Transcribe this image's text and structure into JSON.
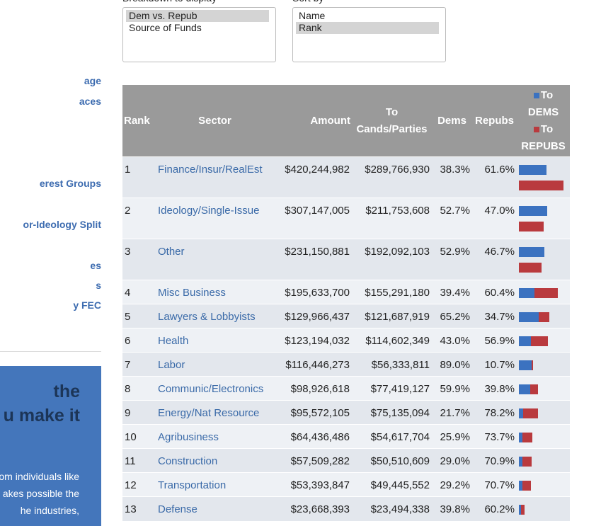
{
  "sidebar": {
    "links": [
      "age",
      "aces",
      "erest Groups",
      "or-Ideology Split",
      "es",
      "s",
      "y FEC"
    ],
    "promo": {
      "heading": [
        "the",
        "u make it"
      ],
      "text": [
        "om individuals like",
        "akes possible the",
        "he industries,"
      ]
    }
  },
  "controls": {
    "breakdown": {
      "label": "Breakdown to display",
      "options": [
        "Dem vs. Repub",
        "Source of Funds"
      ],
      "selected": 0
    },
    "sort": {
      "label": "Sort by",
      "options": [
        "Name",
        "Rank"
      ],
      "selected": 1
    }
  },
  "table": {
    "headers": [
      "Rank",
      "Sector",
      "Amount",
      "To Cands/Parties",
      "Dems",
      "Repubs"
    ],
    "legend": [
      "To DEMS",
      "To REPUBS"
    ],
    "rows": [
      [
        "1",
        "Finance/Insur/RealEst",
        "$420,244,982",
        "$289,766,930",
        "38.3%",
        "61.6%"
      ],
      [
        "2",
        "Ideology/Single-Issue",
        "$307,147,005",
        "$211,753,608",
        "52.7%",
        "47.0%"
      ],
      [
        "3",
        "Other",
        "$231,150,881",
        "$192,092,103",
        "52.9%",
        "46.7%"
      ],
      [
        "4",
        "Misc Business",
        "$195,633,700",
        "$155,291,180",
        "39.4%",
        "60.4%"
      ],
      [
        "5",
        "Lawyers & Lobbyists",
        "$129,966,437",
        "$121,687,919",
        "65.2%",
        "34.7%"
      ],
      [
        "6",
        "Health",
        "$123,194,032",
        "$114,602,349",
        "43.0%",
        "56.9%"
      ],
      [
        "7",
        "Labor",
        "$116,446,273",
        "$56,333,811",
        "89.0%",
        "10.7%"
      ],
      [
        "8",
        "Communic/Electronics",
        "$98,926,618",
        "$77,419,127",
        "59.9%",
        "39.8%"
      ],
      [
        "9",
        "Energy/Nat Resource",
        "$95,572,105",
        "$75,135,094",
        "21.7%",
        "78.2%"
      ],
      [
        "10",
        "Agribusiness",
        "$64,436,486",
        "$54,617,704",
        "25.9%",
        "73.7%"
      ],
      [
        "11",
        "Construction",
        "$57,509,282",
        "$50,510,609",
        "29.0%",
        "70.9%"
      ],
      [
        "12",
        "Transportation",
        "$53,393,847",
        "$49,445,552",
        "29.2%",
        "70.7%"
      ],
      [
        "13",
        "Defense",
        "$23,668,393",
        "$23,494,338",
        "39.8%",
        "60.2%"
      ]
    ]
  }
}
